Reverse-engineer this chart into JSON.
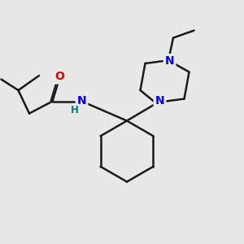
{
  "background_color": "#e8e8e8",
  "bond_color": "#1a1a1a",
  "n_color": "#0000ee",
  "o_color": "#dd0000",
  "h_color": "#008080",
  "line_width": 1.8,
  "font_size": 10,
  "figsize": [
    3.0,
    3.0
  ],
  "dpi": 100,
  "xlim": [
    0,
    10
  ],
  "ylim": [
    0,
    10
  ]
}
